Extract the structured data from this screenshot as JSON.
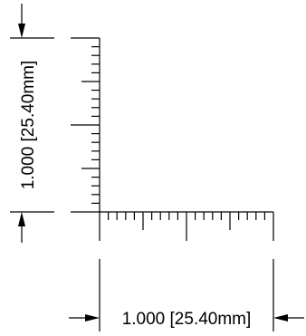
{
  "dimensions": {
    "horizontal": {
      "value": "1.000",
      "metric": "[25.40mm]"
    },
    "vertical": {
      "value": "1.000",
      "metric": "[25.40mm]"
    }
  },
  "ruler": {
    "ticks_per_unit": 20,
    "line_color": "#000000"
  }
}
